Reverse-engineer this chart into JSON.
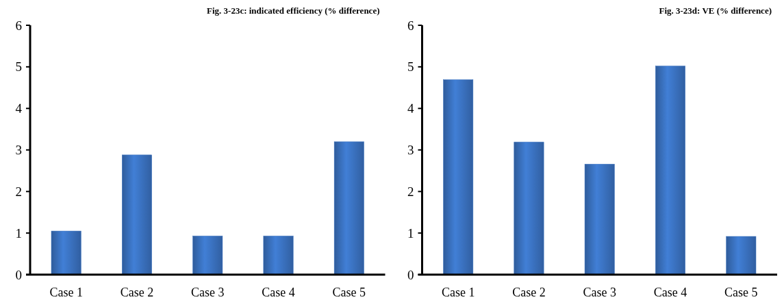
{
  "chart_data": [
    {
      "type": "bar",
      "title": "Fig. 3-23c: indicated efficiency (% difference)",
      "categories": [
        "Case 1",
        "Case 2",
        "Case 3",
        "Case 4",
        "Case 5"
      ],
      "values": [
        1.05,
        2.88,
        0.93,
        0.93,
        3.2
      ],
      "color": "#3a72c0",
      "ylim": [
        0,
        6
      ],
      "yticks": [
        0,
        1,
        2,
        3,
        4,
        5,
        6
      ],
      "grid": false
    },
    {
      "type": "bar",
      "title": "Fig. 3-23d: VE (% difference)",
      "categories": [
        "Case 1",
        "Case 2",
        "Case 3",
        "Case 4",
        "Case 5"
      ],
      "values": [
        4.69,
        3.19,
        2.66,
        5.02,
        0.92
      ],
      "color": "#3a72c0",
      "ylim": [
        0,
        6
      ],
      "yticks": [
        0,
        1,
        2,
        3,
        4,
        5,
        6
      ],
      "grid": false
    }
  ]
}
